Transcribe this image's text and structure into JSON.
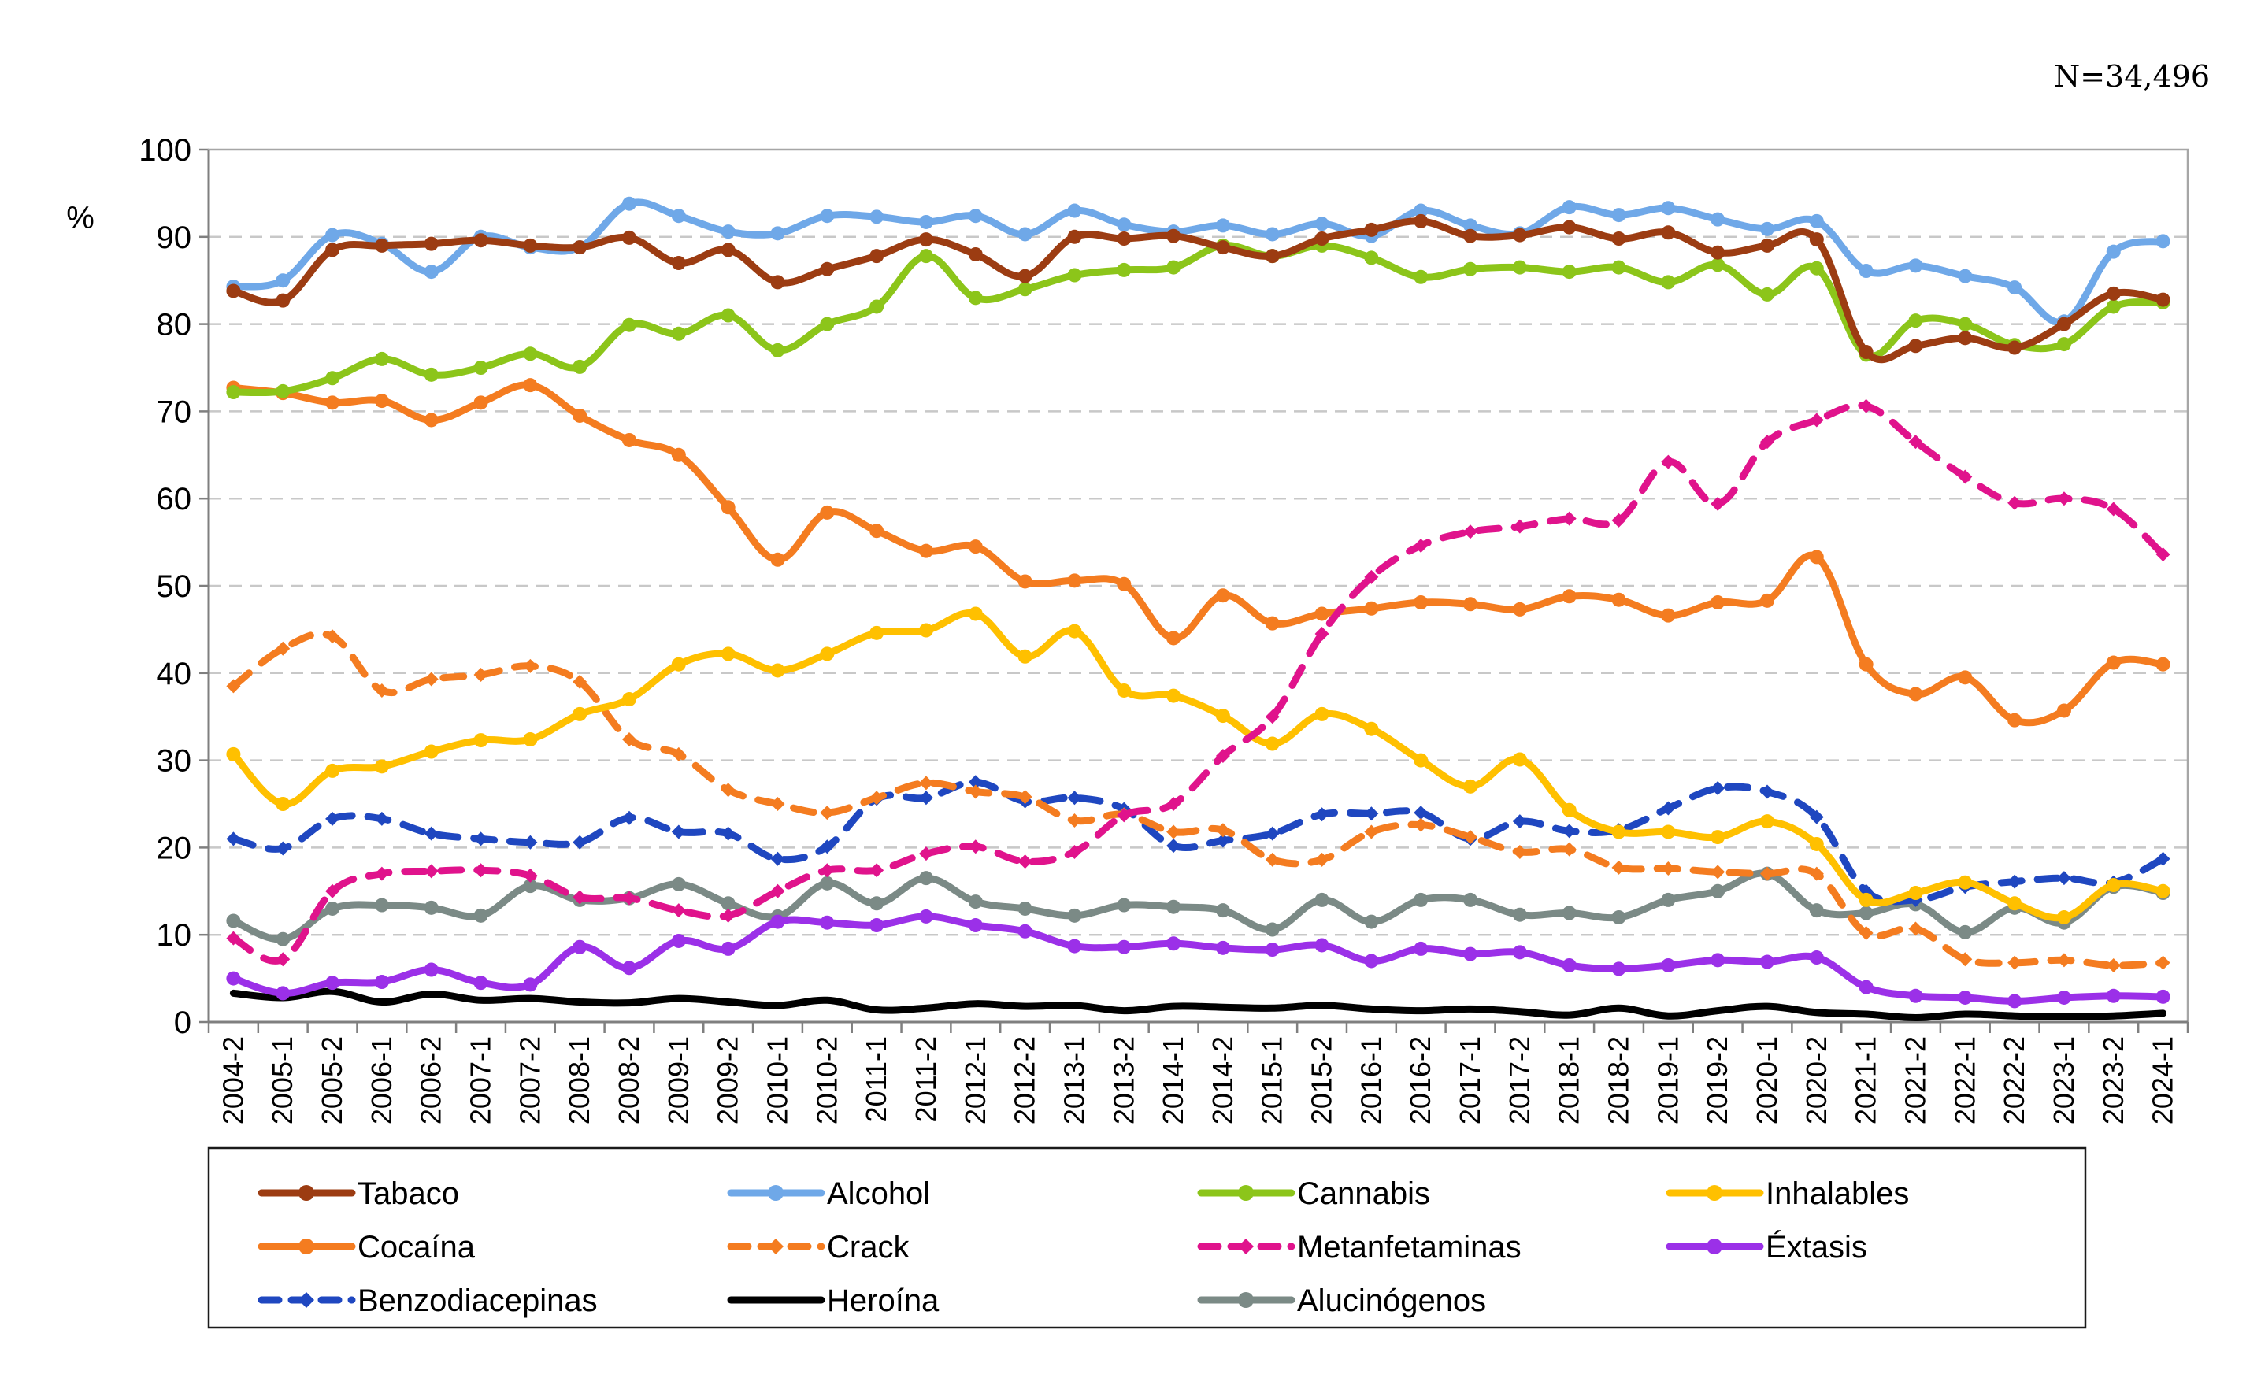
{
  "note": "N=34,496",
  "chart_data": {
    "type": "line",
    "ylabel": "%",
    "ylim": [
      0,
      100
    ],
    "yticks": [
      0,
      10,
      20,
      30,
      40,
      50,
      60,
      70,
      80,
      90,
      100
    ],
    "grid": "horizontal dashed",
    "legend_position": "bottom",
    "categories": [
      "2004-2",
      "2005-1",
      "2005-2",
      "2006-1",
      "2006-2",
      "2007-1",
      "2007-2",
      "2008-1",
      "2008-2",
      "2009-1",
      "2009-2",
      "2010-1",
      "2010-2",
      "2011-1",
      "2011-2",
      "2012-1",
      "2012-2",
      "2013-1",
      "2013-2",
      "2014-1",
      "2014-2",
      "2015-1",
      "2015-2",
      "2016-1",
      "2016-2",
      "2017-1",
      "2017-2",
      "2018-1",
      "2018-2",
      "2019-1",
      "2019-2",
      "2020-1",
      "2020-2",
      "2021-1",
      "2021-2",
      "2022-1",
      "2022-2",
      "2023-1",
      "2023-2",
      "2024-1"
    ],
    "series": [
      {
        "name": "Tabaco",
        "color": "#9c3c12",
        "dash": false,
        "values": [
          83.8,
          82.7,
          88.5,
          89.0,
          89.2,
          89.6,
          89.0,
          88.8,
          89.9,
          87.0,
          88.5,
          84.8,
          86.3,
          87.8,
          89.7,
          88.0,
          85.5,
          90.0,
          89.8,
          90.1,
          88.8,
          87.8,
          89.8,
          90.8,
          91.8,
          90.1,
          90.2,
          91.1,
          89.8,
          90.5,
          88.2,
          89.0,
          89.7,
          76.8,
          77.5,
          78.4,
          77.3,
          80.0,
          83.5,
          82.8
        ]
      },
      {
        "name": "Alcohol",
        "color": "#6fa8e8",
        "dash": false,
        "values": [
          84.3,
          85.0,
          90.2,
          89.2,
          86.0,
          90.0,
          88.8,
          88.8,
          93.8,
          92.4,
          90.6,
          90.4,
          92.4,
          92.3,
          91.7,
          92.4,
          90.3,
          93.0,
          91.4,
          90.6,
          91.3,
          90.3,
          91.5,
          90.1,
          93.0,
          91.3,
          90.4,
          93.4,
          92.5,
          93.3,
          92.0,
          90.9,
          91.8,
          86.1,
          86.7,
          85.5,
          84.2,
          80.3,
          88.3,
          89.5
        ]
      },
      {
        "name": "Cannabis",
        "color": "#8cc51a",
        "dash": false,
        "values": [
          72.2,
          72.3,
          73.8,
          76.0,
          74.2,
          75.0,
          76.6,
          75.1,
          79.9,
          78.9,
          81.0,
          77.0,
          80.0,
          82.0,
          87.8,
          83.0,
          84.0,
          85.6,
          86.2,
          86.5,
          89.0,
          87.8,
          89.0,
          87.6,
          85.4,
          86.3,
          86.5,
          86.0,
          86.5,
          84.8,
          86.8,
          83.4,
          86.4,
          76.5,
          80.4,
          80.0,
          77.6,
          77.7,
          82.0,
          82.5
        ]
      },
      {
        "name": "Inhalables",
        "color": "#ffc000",
        "dash": false,
        "values": [
          30.7,
          25.0,
          28.8,
          29.3,
          31.0,
          32.3,
          32.4,
          35.3,
          37.0,
          41.0,
          42.2,
          40.3,
          42.2,
          44.6,
          44.9,
          46.8,
          41.9,
          44.8,
          38.0,
          37.4,
          35.1,
          31.9,
          35.3,
          33.6,
          30.0,
          27.0,
          30.1,
          24.3,
          21.8,
          21.8,
          21.2,
          23.0,
          20.4,
          14.0,
          14.8,
          16.0,
          13.6,
          12.0,
          15.7,
          15.0
        ]
      },
      {
        "name": "Cocaína",
        "color": "#f47c20",
        "dash": false,
        "values": [
          72.7,
          72.1,
          71.0,
          71.2,
          69.0,
          71.0,
          73.0,
          69.5,
          66.7,
          65.0,
          59.0,
          53.0,
          58.4,
          56.3,
          54.0,
          54.5,
          50.5,
          50.6,
          50.2,
          44.0,
          48.9,
          45.7,
          46.8,
          47.4,
          48.1,
          47.9,
          47.3,
          48.8,
          48.4,
          46.6,
          48.1,
          48.3,
          53.3,
          41.0,
          37.6,
          39.5,
          34.6,
          35.7,
          41.2,
          41.0
        ]
      },
      {
        "name": "Crack",
        "color": "#f47c20",
        "dash": true,
        "values": [
          38.5,
          42.8,
          44.2,
          38.0,
          39.3,
          39.8,
          40.8,
          39.0,
          32.4,
          30.7,
          26.6,
          25.0,
          24.0,
          25.7,
          27.4,
          26.4,
          25.8,
          23.1,
          23.8,
          21.8,
          22.0,
          18.6,
          18.6,
          21.8,
          22.6,
          21.2,
          19.5,
          19.8,
          17.7,
          17.6,
          17.2,
          17.0,
          17.0,
          10.2,
          10.7,
          7.2,
          6.8,
          7.1,
          6.5,
          6.8
        ]
      },
      {
        "name": "Metanfetaminas",
        "color": "#e0138c",
        "dash": true,
        "values": [
          9.6,
          7.2,
          15.0,
          17.0,
          17.3,
          17.4,
          16.8,
          14.3,
          14.2,
          12.8,
          12.2,
          15.0,
          17.4,
          17.4,
          19.3,
          20.1,
          18.4,
          19.5,
          23.7,
          25.0,
          30.5,
          35.0,
          44.5,
          51.0,
          54.6,
          56.2,
          56.8,
          57.7,
          57.5,
          64.2,
          59.4,
          66.5,
          69.0,
          70.6,
          66.5,
          62.5,
          59.5,
          60.0,
          58.8,
          53.6
        ]
      },
      {
        "name": "Éxtasis",
        "color": "#9b30e8",
        "dash": false,
        "values": [
          5.0,
          3.3,
          4.5,
          4.6,
          6.0,
          4.5,
          4.3,
          8.6,
          6.2,
          9.3,
          8.4,
          11.5,
          11.4,
          11.1,
          12.1,
          11.1,
          10.4,
          8.7,
          8.6,
          9.0,
          8.5,
          8.3,
          8.8,
          7.0,
          8.4,
          7.8,
          8.0,
          6.5,
          6.1,
          6.5,
          7.1,
          6.9,
          7.4,
          4.0,
          3.0,
          2.8,
          2.4,
          2.8,
          3.0,
          2.9
        ]
      },
      {
        "name": "Benzodiacepinas",
        "color": "#1f47c0",
        "dash": true,
        "values": [
          21.0,
          19.9,
          23.3,
          23.3,
          21.6,
          21.0,
          20.6,
          20.6,
          23.4,
          21.8,
          21.6,
          18.7,
          20.1,
          25.6,
          25.7,
          27.5,
          25.3,
          25.7,
          24.4,
          20.2,
          20.8,
          21.6,
          23.8,
          23.9,
          24.0,
          21.0,
          23.0,
          21.9,
          22.0,
          24.5,
          26.8,
          26.4,
          23.5,
          15.0,
          14.0,
          15.5,
          16.1,
          16.5,
          16.0,
          18.7
        ]
      },
      {
        "name": "Heroína",
        "color": "#000000",
        "dash": false,
        "values": [
          3.3,
          2.8,
          3.5,
          2.3,
          3.2,
          2.5,
          2.7,
          2.3,
          2.2,
          2.7,
          2.3,
          1.9,
          2.5,
          1.4,
          1.6,
          2.1,
          1.8,
          1.9,
          1.3,
          1.8,
          1.7,
          1.6,
          1.9,
          1.5,
          1.3,
          1.5,
          1.2,
          0.8,
          1.6,
          0.7,
          1.3,
          1.8,
          1.1,
          0.9,
          0.5,
          0.9,
          0.7,
          0.6,
          0.7,
          1.0
        ]
      },
      {
        "name": "Alucinógenos",
        "color": "#7b8a86",
        "dash": false,
        "values": [
          11.6,
          9.5,
          13.0,
          13.4,
          13.1,
          12.2,
          15.6,
          14.0,
          14.2,
          15.8,
          13.6,
          12.1,
          15.9,
          13.6,
          16.5,
          13.8,
          13.0,
          12.2,
          13.4,
          13.2,
          12.8,
          10.6,
          14.0,
          11.5,
          14.0,
          14.0,
          12.3,
          12.5,
          12.0,
          14.0,
          15.0,
          17.0,
          12.8,
          12.5,
          13.5,
          10.3,
          13.1,
          11.4,
          15.5,
          14.8
        ]
      }
    ]
  }
}
